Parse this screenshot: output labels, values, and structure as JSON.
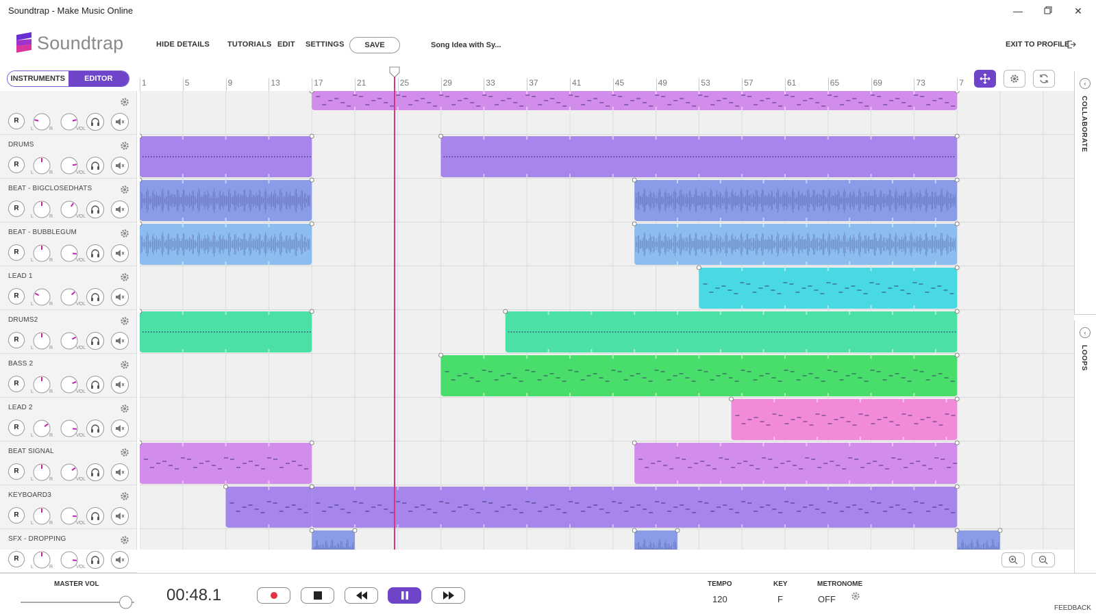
{
  "window": {
    "title": "Soundtrap - Make Music Online",
    "controls": [
      "minimize",
      "restore",
      "close"
    ]
  },
  "header": {
    "brand": "Soundtrap",
    "nav": [
      "HIDE DETAILS",
      "TUTORIALS",
      "EDIT",
      "SETTINGS"
    ],
    "save_label": "SAVE",
    "song_name": "Song Idea with Sy...",
    "exit_label": "EXIT TO PROFILE"
  },
  "view_toggle": {
    "instruments": "INSTRUMENTS",
    "editor": "EDITOR",
    "active": "editor"
  },
  "ruler": {
    "bars": [
      "1",
      "5",
      "9",
      "13",
      "17",
      "21",
      "25",
      "29",
      "33",
      "37",
      "41",
      "45",
      "49",
      "53",
      "57",
      "61",
      "65",
      "69",
      "73",
      "7"
    ],
    "playhead_bar": 24.7
  },
  "track_controls": {
    "record_label": "R",
    "pan_left": "L",
    "pan_right": "R",
    "vol_label": "VOL"
  },
  "tracks": [
    {
      "name": "",
      "pan": -0.55,
      "vol": 0.55,
      "color": "#d18cec",
      "regions": [
        [
          17,
          77
        ]
      ],
      "pattern": "notes"
    },
    {
      "name": "DRUMS",
      "pan": 0,
      "vol": 0.6,
      "color": "#a686ea",
      "regions": [
        [
          1,
          17
        ],
        [
          29,
          77
        ]
      ],
      "pattern": "dots"
    },
    {
      "name": "BEAT - BIGCLOSEDHATS",
      "pan": 0,
      "vol": 0.25,
      "color": "#8a9ce8",
      "regions": [
        [
          1,
          17
        ],
        [
          47,
          77
        ]
      ],
      "pattern": "wave"
    },
    {
      "name": "BEAT - BUBBLEGUM",
      "pan": 0,
      "vol": 0.7,
      "color": "#8dbcee",
      "regions": [
        [
          1,
          17
        ],
        [
          47,
          77
        ]
      ],
      "pattern": "wave"
    },
    {
      "name": "LEAD 1",
      "pan": -0.45,
      "vol": 0.35,
      "color": "#49d9e3",
      "regions": [
        [
          53,
          77
        ]
      ],
      "pattern": "notes"
    },
    {
      "name": "DRUMS2",
      "pan": 0,
      "vol": 0.45,
      "color": "#4be0a6",
      "regions": [
        [
          1,
          17
        ],
        [
          35,
          77
        ]
      ],
      "pattern": "dots"
    },
    {
      "name": "BASS 2",
      "pan": 0,
      "vol": 0.5,
      "color": "#49de6c",
      "regions": [
        [
          29,
          77
        ]
      ],
      "pattern": "notes"
    },
    {
      "name": "LEAD 2",
      "pan": 0.4,
      "vol": 0.7,
      "color": "#f08ad9",
      "regions": [
        [
          56,
          77
        ]
      ],
      "pattern": "notes"
    },
    {
      "name": "BEAT SIGNAL",
      "pan": 0,
      "vol": 0.4,
      "color": "#d18cec",
      "regions": [
        [
          1,
          17
        ],
        [
          47,
          77
        ]
      ],
      "pattern": "notes"
    },
    {
      "name": "KEYBOARD3",
      "pan": 0,
      "vol": 0.68,
      "color": "#a686ea",
      "regions": [
        [
          9,
          17
        ],
        [
          17,
          77
        ]
      ],
      "pattern": "notes"
    },
    {
      "name": "SFX - DROPPING",
      "pan": 0,
      "vol": 0.7,
      "color": "#8a9ce8",
      "regions": [
        [
          17,
          21
        ],
        [
          47,
          51
        ],
        [
          77,
          81
        ]
      ],
      "pattern": "wave"
    }
  ],
  "side_panels": [
    "COLLABORATE",
    "LOOPS"
  ],
  "transport": {
    "master_vol_label": "MASTER VOL",
    "master_vol": 0.97,
    "time": "00:48.1",
    "tempo_label": "TEMPO",
    "tempo": "120",
    "key_label": "KEY",
    "key": "F",
    "metronome_label": "METRONOME",
    "metronome": "OFF",
    "feedback": "FEEDBACK"
  },
  "colors": {
    "accent": "#6e44c9",
    "playhead": "#d4377e",
    "knob_indicator": "#c21fb3"
  }
}
